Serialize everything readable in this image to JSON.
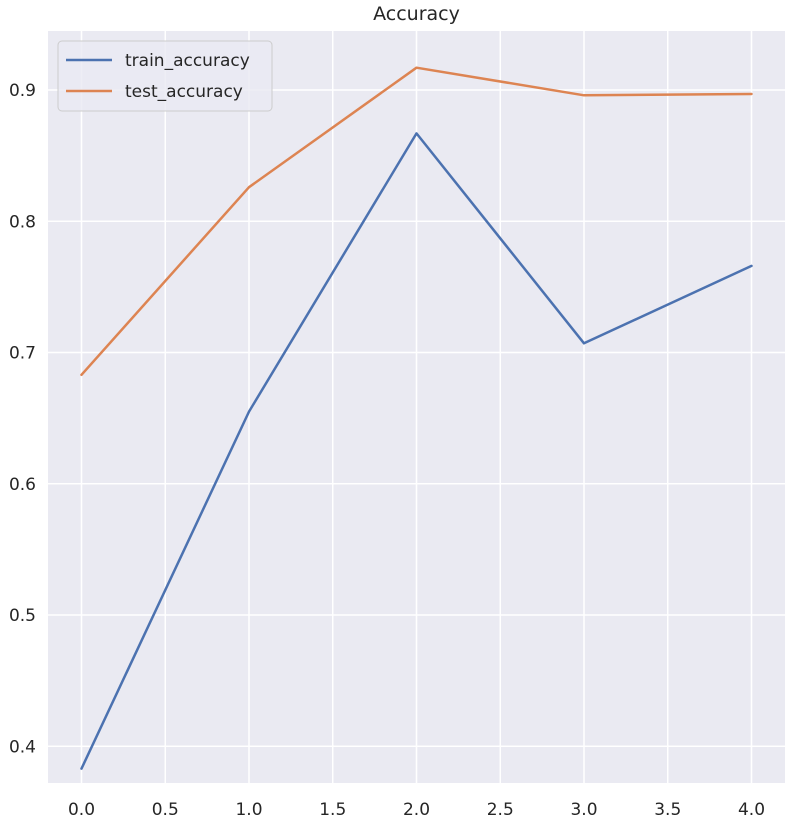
{
  "chart_data": {
    "type": "line",
    "title": "Accuracy",
    "xlabel": "",
    "ylabel": "",
    "x": [
      0,
      1,
      2,
      3,
      4
    ],
    "xlim": [
      -0.2,
      4.2
    ],
    "ylim": [
      0.372,
      0.945
    ],
    "xticks": [
      "0.0",
      "0.5",
      "1.0",
      "1.5",
      "2.0",
      "2.5",
      "3.0",
      "3.5",
      "4.0"
    ],
    "yticks": [
      "0.4",
      "0.5",
      "0.6",
      "0.7",
      "0.8",
      "0.9"
    ],
    "grid": true,
    "legend_position": "top-left",
    "background_color": "#eaeaf2",
    "series": [
      {
        "name": "train_accuracy",
        "color": "#4c72b0",
        "values": [
          0.383,
          0.655,
          0.867,
          0.707,
          0.766
        ]
      },
      {
        "name": "test_accuracy",
        "color": "#dd8452",
        "values": [
          0.683,
          0.826,
          0.917,
          0.896,
          0.897
        ]
      }
    ]
  }
}
